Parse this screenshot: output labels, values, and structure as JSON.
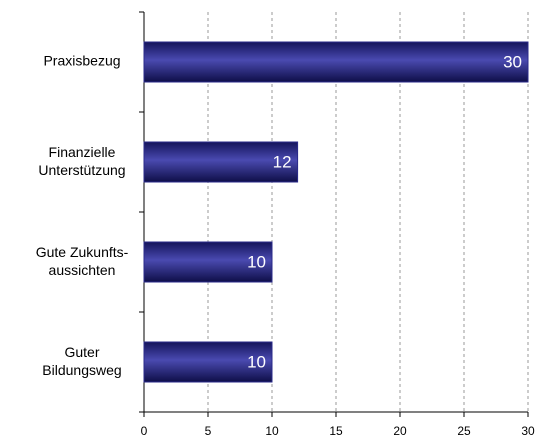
{
  "chart_data": {
    "type": "bar",
    "orientation": "horizontal",
    "categories": [
      "Praxisbezug",
      "Finanzielle\nUnterstützung",
      "Gute Zukunfts-\naussichten",
      "Guter\nBildungsweg"
    ],
    "values": [
      30,
      12,
      10,
      10
    ],
    "color": "#2a2a8a",
    "xlim": [
      0,
      30
    ],
    "xticks": [
      0,
      5,
      10,
      15,
      20,
      25,
      30
    ],
    "grid": true
  }
}
